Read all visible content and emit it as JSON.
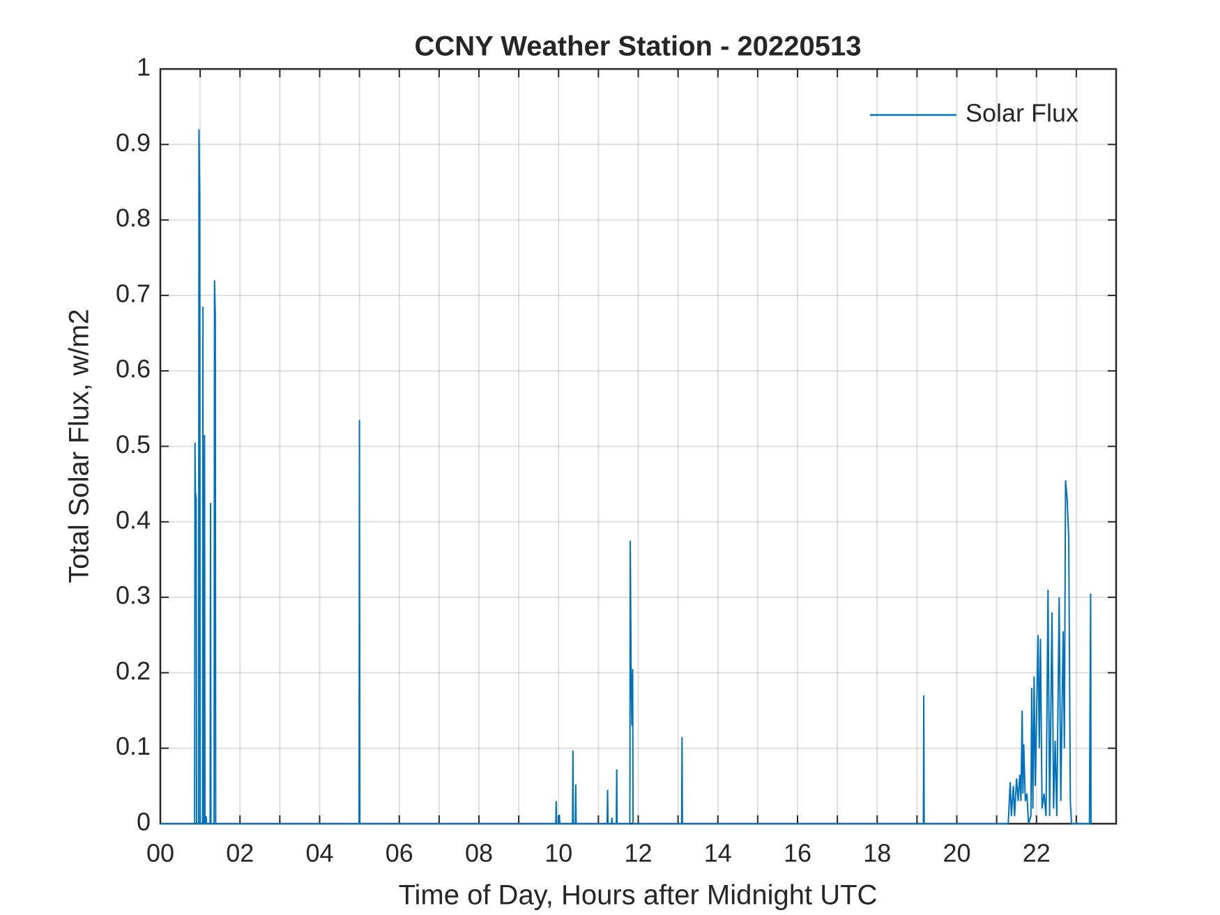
{
  "chart_data": {
    "type": "line",
    "title": "CCNY Weather Station - 20220513",
    "xlabel": "Time of Day, Hours after Midnight UTC",
    "ylabel": "Total Solar Flux, w/m2",
    "xlim": [
      0,
      24
    ],
    "ylim": [
      0,
      1
    ],
    "xticks": [
      {
        "value": 0,
        "label": "00"
      },
      {
        "value": 2,
        "label": "02"
      },
      {
        "value": 4,
        "label": "04"
      },
      {
        "value": 6,
        "label": "06"
      },
      {
        "value": 8,
        "label": "08"
      },
      10,
      12,
      14,
      16,
      18,
      20,
      22
    ],
    "xminorticks": [
      1,
      3,
      5,
      7,
      9,
      11,
      13,
      15,
      17,
      19,
      21,
      23
    ],
    "yticks": [
      0,
      0.1,
      0.2,
      0.3,
      0.4,
      0.5,
      0.6,
      0.7,
      0.8,
      0.9,
      1
    ],
    "grid": true,
    "legend": "upper right",
    "x": [
      0,
      0.86,
      0.87,
      0.88,
      0.9,
      0.91,
      0.96,
      0.97,
      0.99,
      1.0,
      1.06,
      1.07,
      1.08,
      1.1,
      1.11,
      1.12,
      1.14,
      1.15,
      1.16,
      1.25,
      1.26,
      1.27,
      1.35,
      1.36,
      1.38,
      1.39,
      4.99,
      5.0,
      5.01,
      9.93,
      9.94,
      9.95,
      10.01,
      10.02,
      10.03,
      10.35,
      10.36,
      10.37,
      10.42,
      10.43,
      10.44,
      11.22,
      11.23,
      11.24,
      11.33,
      11.34,
      11.35,
      11.45,
      11.46,
      11.47,
      11.79,
      11.8,
      11.82,
      11.84,
      11.86,
      11.87,
      13.09,
      13.1,
      13.11,
      19.16,
      19.17,
      19.18,
      21.29,
      21.3,
      21.34,
      21.37,
      21.42,
      21.45,
      21.5,
      21.54,
      21.58,
      21.61,
      21.64,
      21.66,
      21.68,
      21.72,
      21.76,
      21.8,
      21.86,
      21.88,
      21.91,
      21.94,
      21.97,
      22.04,
      22.07,
      22.1,
      22.14,
      22.19,
      22.24,
      22.29,
      22.33,
      22.39,
      22.43,
      22.47,
      22.51,
      22.57,
      22.61,
      22.67,
      22.7,
      22.73,
      22.77,
      22.81,
      22.85,
      22.88,
      23.33,
      23.34,
      23.36,
      23.37
    ],
    "series": [
      {
        "name": "Solar Flux",
        "color": "#0072bd",
        "values": [
          0,
          0,
          0.505,
          0.44,
          0.43,
          0,
          0,
          0.92,
          0.83,
          0,
          0,
          0.685,
          0,
          0,
          0.515,
          0,
          0,
          0.01,
          0,
          0,
          0.425,
          0,
          0,
          0.72,
          0.675,
          0,
          0,
          0.535,
          0,
          0,
          0.03,
          0,
          0,
          0.012,
          0,
          0,
          0.097,
          0,
          0,
          0.052,
          0,
          0,
          0.045,
          0,
          0,
          0.008,
          0,
          0,
          0.072,
          0,
          0,
          0.375,
          0.205,
          0.13,
          0.205,
          0,
          0,
          0.115,
          0,
          0,
          0.17,
          0,
          0,
          0.01,
          0.055,
          0.01,
          0.05,
          0.01,
          0.06,
          0.03,
          0.065,
          0.03,
          0.15,
          0.04,
          0.105,
          0.03,
          0.04,
          0,
          0.01,
          0.18,
          0.02,
          0.195,
          0.05,
          0.25,
          0.1,
          0.245,
          0.02,
          0.04,
          0.01,
          0.31,
          0.01,
          0.28,
          0.02,
          0.11,
          0.01,
          0.3,
          0.03,
          0.255,
          0.1,
          0.455,
          0.43,
          0.38,
          0.03,
          0,
          0,
          0.11,
          0.305,
          0
        ]
      }
    ]
  }
}
